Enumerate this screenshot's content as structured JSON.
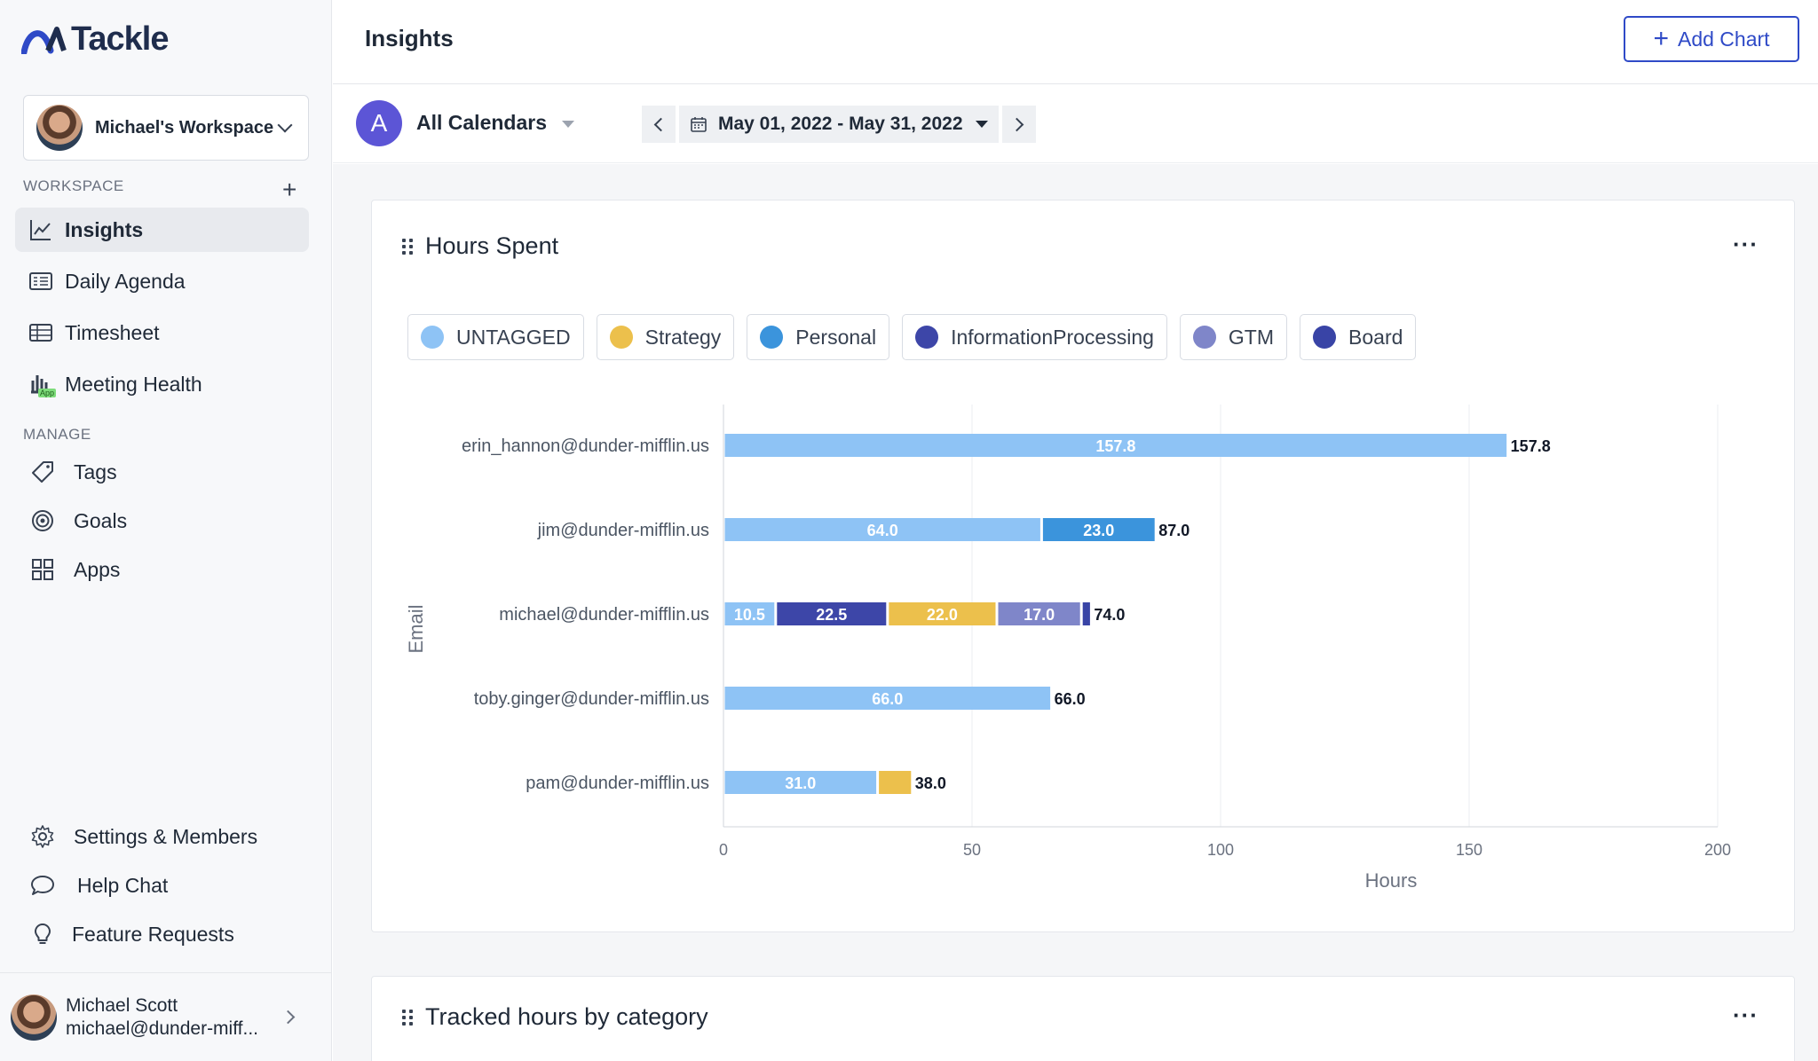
{
  "brand": {
    "name": "Tackle",
    "accent": "#2f4ac7"
  },
  "sidebar": {
    "workspace_switch": {
      "label": "Michael's Workspace"
    },
    "workspace_section": "WORKSPACE",
    "manage_section": "MANAGE",
    "items": [
      {
        "label": "Insights",
        "icon": "chart-line-icon",
        "active": true
      },
      {
        "label": "Daily Agenda",
        "icon": "agenda-icon"
      },
      {
        "label": "Timesheet",
        "icon": "table-icon"
      },
      {
        "label": "Meeting Health",
        "icon": "bar-chart-icon",
        "badge": "App"
      }
    ],
    "manage_items": [
      {
        "label": "Tags",
        "icon": "tag-icon"
      },
      {
        "label": "Goals",
        "icon": "target-icon"
      },
      {
        "label": "Apps",
        "icon": "grid-icon"
      }
    ],
    "bottom_items": [
      {
        "label": "Settings & Members",
        "icon": "gear-icon"
      },
      {
        "label": "Help Chat",
        "icon": "chat-bubble-icon"
      },
      {
        "label": "Feature Requests",
        "icon": "lightbulb-icon"
      }
    ],
    "user": {
      "name": "Michael Scott",
      "email": "michael@dunder-miff..."
    }
  },
  "header": {
    "title": "Insights",
    "add_chart_label": "Add Chart"
  },
  "filters": {
    "calendar_initial": "A",
    "calendar_label": "All Calendars",
    "date_range": "May 01, 2022 - May 31, 2022"
  },
  "cards": [
    {
      "title": "Hours Spent"
    },
    {
      "title": "Tracked hours by category"
    }
  ],
  "chart_data": {
    "type": "bar",
    "orientation": "horizontal",
    "stacked": true,
    "xlabel": "Hours",
    "ylabel": "Email",
    "xlim": [
      0,
      200
    ],
    "xticks": [
      0,
      50,
      100,
      150,
      200
    ],
    "grid": true,
    "categories": [
      "erin_hannon@dunder-mifflin.us",
      "jim@dunder-mifflin.us",
      "michael@dunder-mifflin.us",
      "toby.ginger@dunder-mifflin.us",
      "pam@dunder-mifflin.us"
    ],
    "legend": [
      {
        "name": "UNTAGGED",
        "color": "#8ec3f5"
      },
      {
        "name": "Strategy",
        "color": "#ecc04c"
      },
      {
        "name": "Personal",
        "color": "#3b94dc"
      },
      {
        "name": "InformationProcessing",
        "color": "#3d46a8"
      },
      {
        "name": "GTM",
        "color": "#7f86c9"
      },
      {
        "name": "Board",
        "color": "#3944a6"
      }
    ],
    "stacks": [
      [
        {
          "series": "UNTAGGED",
          "value": 157.8
        }
      ],
      [
        {
          "series": "UNTAGGED",
          "value": 64.0
        },
        {
          "series": "Personal",
          "value": 23.0
        }
      ],
      [
        {
          "series": "UNTAGGED",
          "value": 10.5
        },
        {
          "series": "InformationProcessing",
          "value": 22.5
        },
        {
          "series": "Strategy",
          "value": 22.0
        },
        {
          "series": "GTM",
          "value": 17.0
        },
        {
          "series": "Board",
          "value": 2.0
        }
      ],
      [
        {
          "series": "UNTAGGED",
          "value": 66.0
        }
      ],
      [
        {
          "series": "UNTAGGED",
          "value": 31.0
        },
        {
          "series": "Strategy",
          "value": 7.0
        }
      ]
    ],
    "totals": [
      "157.8",
      "87.0",
      "74.0",
      "66.0",
      "38.0"
    ]
  }
}
